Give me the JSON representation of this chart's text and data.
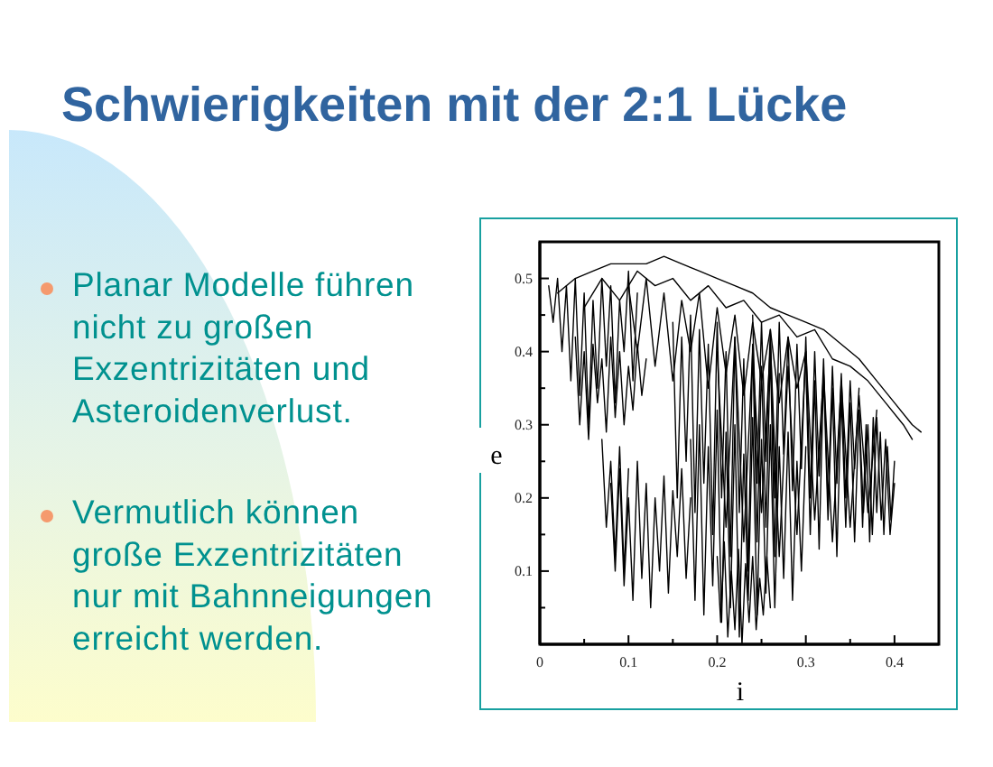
{
  "chart_data": {
    "type": "line",
    "title": "Schwierigkeiten mit der 2:1 Lücke",
    "xlabel": "i",
    "ylabel": "e",
    "annotations": [
      "Planar Modelle führen\nnicht zu großen\nExzentrizitäten und\nAsteroidenverlust.",
      "Vermutlich können\ngroße Exzentrizitäten\nnur mit Bahnneigungen\nerreicht werden."
    ],
    "xlim": [
      0,
      0.45
    ],
    "ylim": [
      0,
      0.55
    ],
    "xticks": [
      0,
      {
        "value": 0.05,
        "label": null
      },
      0.1,
      {
        "value": 0.15,
        "label": null
      },
      0.2,
      {
        "value": 0.25,
        "label": null
      },
      0.3,
      {
        "value": 0.35,
        "label": null
      },
      0.4
    ],
    "yticks": [
      {
        "value": 0.05,
        "label": null
      },
      0.1,
      {
        "value": 0.15,
        "label": null
      },
      0.2,
      {
        "value": 0.25,
        "label": null
      },
      0.3,
      {
        "value": 0.35,
        "label": null
      },
      0.4,
      {
        "value": 0.45,
        "label": null
      },
      0.5
    ],
    "series": [
      {
        "color": "#000000",
        "x": [
          0.01,
          0.015,
          0.02,
          0.025,
          0.03,
          0.035,
          0.04,
          0.045,
          0.05,
          0.055,
          0.06,
          0.065,
          0.07,
          0.075,
          0.08,
          0.085,
          0.09,
          0.095,
          0.1,
          0.105,
          0.11
        ],
        "values": [
          0.49,
          0.44,
          0.5,
          0.4,
          0.49,
          0.36,
          0.5,
          0.34,
          0.48,
          0.3,
          0.47,
          0.35,
          0.5,
          0.38,
          0.49,
          0.33,
          0.47,
          0.4,
          0.51,
          0.36,
          0.48
        ]
      },
      {
        "color": "#000000",
        "x": [
          0.02,
          0.04,
          0.06,
          0.08,
          0.1,
          0.12,
          0.14,
          0.16,
          0.18,
          0.2,
          0.22,
          0.24,
          0.26,
          0.28,
          0.3,
          0.32,
          0.34,
          0.36,
          0.38,
          0.4,
          0.42,
          0.43
        ],
        "values": [
          0.48,
          0.5,
          0.51,
          0.52,
          0.52,
          0.52,
          0.53,
          0.52,
          0.51,
          0.5,
          0.49,
          0.48,
          0.46,
          0.45,
          0.44,
          0.43,
          0.41,
          0.39,
          0.36,
          0.33,
          0.3,
          0.29
        ]
      },
      {
        "color": "#000000",
        "x": [
          0.05,
          0.07,
          0.09,
          0.11,
          0.13,
          0.15,
          0.17,
          0.19,
          0.21,
          0.23,
          0.25,
          0.27,
          0.29,
          0.31,
          0.33,
          0.35,
          0.37,
          0.39,
          0.41,
          0.42
        ],
        "values": [
          0.46,
          0.5,
          0.47,
          0.51,
          0.49,
          0.5,
          0.47,
          0.49,
          0.46,
          0.47,
          0.44,
          0.45,
          0.42,
          0.43,
          0.39,
          0.38,
          0.36,
          0.33,
          0.3,
          0.28
        ]
      },
      {
        "color": "#000000",
        "x": [
          0.1,
          0.11,
          0.12,
          0.13,
          0.14,
          0.15,
          0.16,
          0.17,
          0.18,
          0.19,
          0.2,
          0.21,
          0.22,
          0.23,
          0.24,
          0.25,
          0.26,
          0.27,
          0.28,
          0.29,
          0.3
        ],
        "values": [
          0.49,
          0.4,
          0.5,
          0.38,
          0.48,
          0.36,
          0.47,
          0.4,
          0.48,
          0.35,
          0.46,
          0.37,
          0.45,
          0.34,
          0.44,
          0.36,
          0.43,
          0.33,
          0.42,
          0.35,
          0.4
        ]
      },
      {
        "color": "#000000",
        "x": [
          0.08,
          0.085,
          0.09,
          0.095,
          0.1,
          0.105,
          0.11,
          0.115,
          0.12,
          0.125,
          0.13,
          0.135,
          0.14,
          0.145,
          0.15,
          0.155,
          0.16,
          0.165,
          0.17
        ],
        "values": [
          0.22,
          0.1,
          0.24,
          0.08,
          0.2,
          0.06,
          0.25,
          0.09,
          0.22,
          0.05,
          0.2,
          0.1,
          0.23,
          0.07,
          0.21,
          0.12,
          0.24,
          0.09,
          0.2
        ]
      },
      {
        "color": "#000000",
        "x": [
          0.17,
          0.175,
          0.18,
          0.185,
          0.19,
          0.195,
          0.2,
          0.205,
          0.21,
          0.215,
          0.22,
          0.225,
          0.23,
          0.235,
          0.24,
          0.245,
          0.25,
          0.255,
          0.26,
          0.265,
          0.27,
          0.275,
          0.28,
          0.285,
          0.29,
          0.295,
          0.3
        ],
        "values": [
          0.28,
          0.06,
          0.3,
          0.04,
          0.27,
          0.08,
          0.32,
          0.03,
          0.29,
          0.05,
          0.3,
          0.01,
          0.26,
          0.06,
          0.31,
          0.04,
          0.28,
          0.07,
          0.3,
          0.05,
          0.27,
          0.09,
          0.29,
          0.06,
          0.25,
          0.1,
          0.27
        ]
      },
      {
        "color": "#000000",
        "x": [
          0.2,
          0.21,
          0.22,
          0.23,
          0.24,
          0.25,
          0.26,
          0.27,
          0.28,
          0.29,
          0.3,
          0.31,
          0.32,
          0.33,
          0.34,
          0.35,
          0.36,
          0.37,
          0.38
        ],
        "values": [
          0.4,
          0.16,
          0.42,
          0.14,
          0.4,
          0.18,
          0.41,
          0.12,
          0.38,
          0.15,
          0.4,
          0.17,
          0.37,
          0.14,
          0.36,
          0.16,
          0.34,
          0.18,
          0.32
        ]
      },
      {
        "color": "#000000",
        "x": [
          0.3,
          0.305,
          0.31,
          0.315,
          0.32,
          0.325,
          0.33,
          0.335,
          0.34,
          0.345,
          0.35,
          0.355,
          0.36,
          0.365,
          0.37,
          0.375,
          0.38,
          0.385,
          0.39,
          0.395,
          0.4
        ],
        "values": [
          0.38,
          0.15,
          0.36,
          0.13,
          0.37,
          0.17,
          0.35,
          0.12,
          0.34,
          0.16,
          0.33,
          0.14,
          0.32,
          0.18,
          0.3,
          0.15,
          0.31,
          0.17,
          0.28,
          0.15,
          0.22
        ]
      },
      {
        "color": "#000000",
        "x": [
          0.04,
          0.045,
          0.05,
          0.055,
          0.06,
          0.065,
          0.07,
          0.075,
          0.08,
          0.085,
          0.09,
          0.095,
          0.1,
          0.105,
          0.11,
          0.115,
          0.12
        ],
        "values": [
          0.42,
          0.3,
          0.4,
          0.28,
          0.41,
          0.33,
          0.39,
          0.29,
          0.42,
          0.31,
          0.4,
          0.3,
          0.38,
          0.32,
          0.41,
          0.34,
          0.39
        ]
      },
      {
        "color": "#000000",
        "x": [
          0.15,
          0.155,
          0.16,
          0.165,
          0.17,
          0.175,
          0.18,
          0.185,
          0.19,
          0.195,
          0.2,
          0.205,
          0.21,
          0.215,
          0.22,
          0.225,
          0.23,
          0.235,
          0.24,
          0.245,
          0.25,
          0.255,
          0.26,
          0.265,
          0.27
        ],
        "values": [
          0.44,
          0.2,
          0.42,
          0.25,
          0.45,
          0.18,
          0.43,
          0.22,
          0.41,
          0.15,
          0.44,
          0.2,
          0.4,
          0.12,
          0.42,
          0.18,
          0.39,
          0.1,
          0.41,
          0.14,
          0.38,
          0.16,
          0.4,
          0.12,
          0.37
        ]
      },
      {
        "color": "#000000",
        "x": [
          0.2,
          0.204,
          0.208,
          0.212,
          0.216,
          0.22,
          0.224,
          0.228,
          0.232,
          0.236,
          0.24,
          0.244,
          0.248,
          0.252,
          0.256,
          0.26
        ],
        "values": [
          0.12,
          0.03,
          0.14,
          0.01,
          0.1,
          0.02,
          0.13,
          0.0,
          0.11,
          0.03,
          0.12,
          0.02,
          0.09,
          0.04,
          0.12,
          0.05
        ]
      },
      {
        "color": "#000000",
        "x": [
          0.07,
          0.075,
          0.08,
          0.085,
          0.09,
          0.095,
          0.1
        ],
        "values": [
          0.28,
          0.16,
          0.25,
          0.12,
          0.27,
          0.1,
          0.24
        ]
      },
      {
        "color": "#000000",
        "x": [
          0.24,
          0.245,
          0.25,
          0.255,
          0.26,
          0.265,
          0.27,
          0.275,
          0.28,
          0.285,
          0.29,
          0.295,
          0.3,
          0.305,
          0.31,
          0.315,
          0.32,
          0.325,
          0.33,
          0.335,
          0.34,
          0.345,
          0.35,
          0.355,
          0.36
        ],
        "values": [
          0.45,
          0.22,
          0.44,
          0.25,
          0.43,
          0.2,
          0.44,
          0.26,
          0.42,
          0.21,
          0.41,
          0.24,
          0.42,
          0.2,
          0.4,
          0.23,
          0.39,
          0.19,
          0.38,
          0.22,
          0.37,
          0.2,
          0.36,
          0.24,
          0.35
        ]
      },
      {
        "color": "#000000",
        "x": [
          0.36,
          0.364,
          0.368,
          0.372,
          0.376,
          0.38,
          0.384,
          0.388,
          0.392,
          0.396,
          0.4
        ],
        "values": [
          0.32,
          0.16,
          0.3,
          0.14,
          0.31,
          0.18,
          0.29,
          0.15,
          0.27,
          0.17,
          0.25
        ]
      }
    ]
  }
}
